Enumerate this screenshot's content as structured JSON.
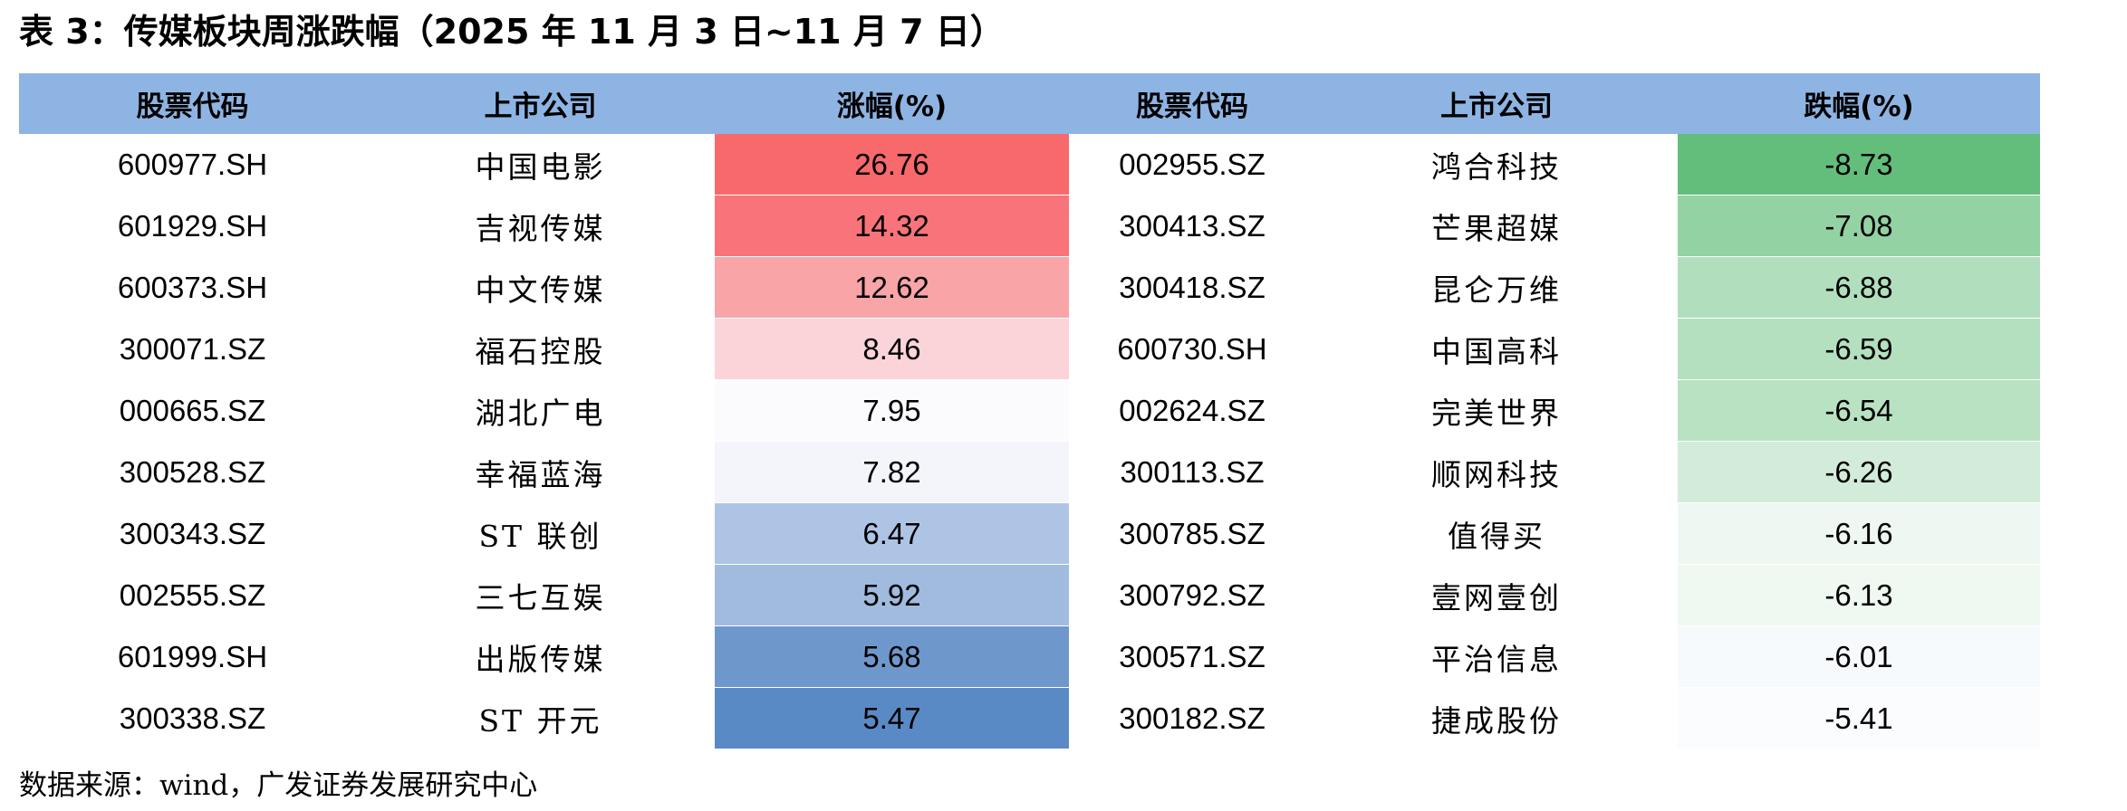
{
  "title": "表 3：传媒板块周涨跌幅（2025 年 11 月 3 日~11 月 7 日）",
  "table": {
    "header": [
      "股票代码",
      "上市公司",
      "涨幅(%)",
      "股票代码",
      "上市公司",
      "跌幅(%)"
    ],
    "rows": [
      [
        "600977.SH",
        "中国电影",
        26.76,
        "002955.SZ",
        "鸿合科技",
        -8.73
      ],
      [
        "601929.SH",
        "吉视传媒",
        14.32,
        "300413.SZ",
        "芒果超媒",
        -7.08
      ],
      [
        "600373.SH",
        "中文传媒",
        12.62,
        "300418.SZ",
        "昆仑万维",
        -6.88
      ],
      [
        "300071.SZ",
        "福石控股",
        8.46,
        "600730.SH",
        "中国高科",
        -6.59
      ],
      [
        "000665.SZ",
        "湖北广电",
        7.95,
        "002624.SZ",
        "完美世界",
        -6.54
      ],
      [
        "300528.SZ",
        "幸福蓝海",
        7.82,
        "300113.SZ",
        "顺网科技",
        -6.26
      ],
      [
        "300343.SZ",
        "ST 联创",
        6.47,
        "300785.SZ",
        "值得买",
        -6.16
      ],
      [
        "002555.SZ",
        "三七互娱",
        5.92,
        "300792.SZ",
        "壹网壹创",
        -6.13
      ],
      [
        "601999.SH",
        "出版传媒",
        5.68,
        "300571.SZ",
        "平治信息",
        -6.01
      ],
      [
        "300338.SZ",
        "ST 开元",
        5.47,
        "300182.SZ",
        "捷成股份",
        -5.41
      ]
    ],
    "gain_colors": [
      "#f8696b",
      "#f8747a",
      "#f9a4a7",
      "#fbd4da",
      "#fbfbfd",
      "#f3f5fb",
      "#aec4e5",
      "#a1bbdf",
      "#6e98cc",
      "#5a8ac6"
    ],
    "loss_colors": [
      "#63be7b",
      "#93d2a3",
      "#b1dfbd",
      "#b5e0c0",
      "#b9e2c3",
      "#d3ecd9",
      "#eef7f1",
      "#f0f8f2",
      "#f7fafc",
      "#fbfcfd"
    ]
  },
  "source": "数据来源：wind，广发证券发展研究中心"
}
